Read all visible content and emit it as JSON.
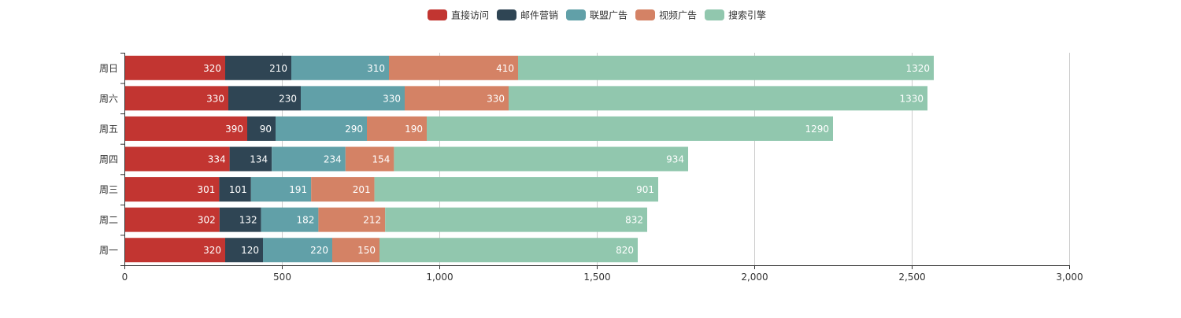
{
  "chart_data": {
    "type": "bar",
    "orientation": "horizontal",
    "stacked": true,
    "title": "",
    "xlabel": "",
    "ylabel": "",
    "xlim": [
      0,
      3000
    ],
    "x_ticks": [
      0,
      500,
      1000,
      1500,
      2000,
      2500,
      3000
    ],
    "x_tick_labels": [
      "0",
      "500",
      "1,000",
      "1,500",
      "2,000",
      "2,500",
      "3,000"
    ],
    "grid": true,
    "legend_position": "top-center",
    "categories": [
      "周一",
      "周二",
      "周三",
      "周四",
      "周五",
      "周六",
      "周日"
    ],
    "series": [
      {
        "name": "直接访问",
        "color": "#c23531",
        "values": [
          320,
          302,
          301,
          334,
          390,
          330,
          320
        ]
      },
      {
        "name": "邮件营销",
        "color": "#2f4554",
        "values": [
          120,
          132,
          101,
          134,
          90,
          230,
          210
        ]
      },
      {
        "name": "联盟广告",
        "color": "#61a0a8",
        "values": [
          220,
          182,
          191,
          234,
          290,
          330,
          310
        ]
      },
      {
        "name": "视频广告",
        "color": "#d48265",
        "values": [
          150,
          212,
          201,
          154,
          190,
          330,
          410
        ]
      },
      {
        "name": "搜索引擎",
        "color": "#91c7ae",
        "values": [
          820,
          832,
          901,
          934,
          1290,
          1330,
          1320
        ]
      }
    ]
  }
}
